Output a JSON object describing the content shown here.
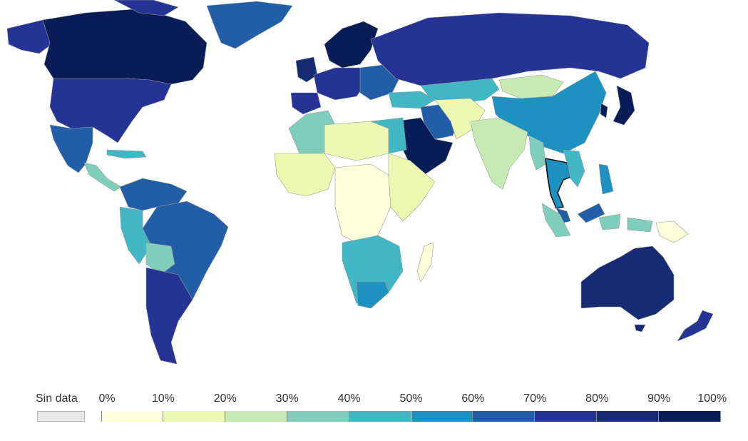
{
  "legend": {
    "no_data_label": "Sin data",
    "no_data_color": "#e8e8e8",
    "ticks": [
      "0%",
      "10%",
      "20%",
      "30%",
      "40%",
      "50%",
      "60%",
      "70%",
      "80%",
      "90%",
      "100%"
    ],
    "colors": [
      "#ffffd9",
      "#edf8b1",
      "#c7e9b4",
      "#7fcdbb",
      "#41b6c4",
      "#1d91c0",
      "#225ea8",
      "#253494",
      "#172a74",
      "#081d58"
    ]
  },
  "highlight_color": "#111111"
}
